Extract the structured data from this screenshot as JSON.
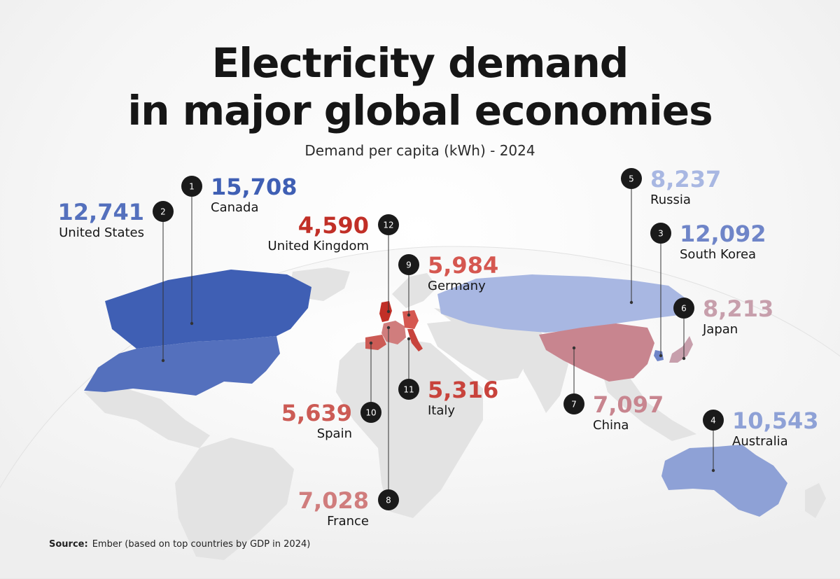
{
  "title_line1": "Electricity demand",
  "title_line2": "in major global economies",
  "subtitle": "Demand per capita (kWh) - 2024",
  "source_label": "Source:",
  "source_text": "Ember (based on top countries by GDP in 2024)",
  "colors": {
    "background": "#f4f4f4",
    "land": "#e4e4e4",
    "leader_line": "#333333",
    "badge": "#1a1a1a",
    "country_label": "#161616",
    "canada": "#3f5fb4",
    "united_states": "#5470bd",
    "south_korea": "#6f85c8",
    "australia": "#8ea1d6",
    "russia": "#a8b7e2",
    "japan": "#c79fac",
    "china": "#c8858f",
    "france": "#d07d7d",
    "spain": "#cc5b55",
    "italy": "#c8433c",
    "germany": "#d55750",
    "united_kingdom": "#c12f27"
  },
  "markers": [
    {
      "rank": "1",
      "country": "Canada",
      "value": "15,708",
      "color_key": "canada"
    },
    {
      "rank": "2",
      "country": "United States",
      "value": "12,741",
      "color_key": "united_states"
    },
    {
      "rank": "3",
      "country": "South Korea",
      "value": "12,092",
      "color_key": "south_korea"
    },
    {
      "rank": "4",
      "country": "Australia",
      "value": "10,543",
      "color_key": "australia"
    },
    {
      "rank": "5",
      "country": "Russia",
      "value": "8,237",
      "color_key": "russia"
    },
    {
      "rank": "6",
      "country": "Japan",
      "value": "8,213",
      "color_key": "japan"
    },
    {
      "rank": "7",
      "country": "China",
      "value": "7,097",
      "color_key": "china"
    },
    {
      "rank": "8",
      "country": "France",
      "value": "7,028",
      "color_key": "france"
    },
    {
      "rank": "9",
      "country": "Germany",
      "value": "5,984",
      "color_key": "germany"
    },
    {
      "rank": "10",
      "country": "Spain",
      "value": "5,639",
      "color_key": "spain"
    },
    {
      "rank": "11",
      "country": "Italy",
      "value": "5,316",
      "color_key": "italy"
    },
    {
      "rank": "12",
      "country": "United Kingdom",
      "value": "4,590",
      "color_key": "united_kingdom"
    }
  ]
}
